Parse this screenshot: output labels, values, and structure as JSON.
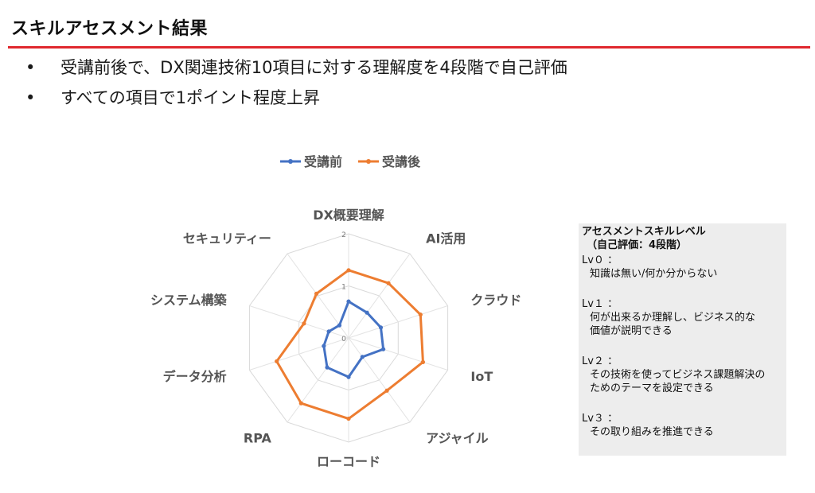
{
  "page": {
    "title": "スキルアセスメント結果",
    "bullets": [
      "受講前後で、DX関連技術10項目に対する理解度を4段階で自己評価",
      "すべての項目で1ポイント程度上昇"
    ]
  },
  "panel": {
    "heading": "アセスメントスキルレベル",
    "subheading": "（自己評価：4段階）",
    "levels": [
      {
        "label": "Lv０ ：",
        "lines": [
          "知識は無い/何か分からない"
        ]
      },
      {
        "label": "Lv１ ：",
        "lines": [
          "何が出来るか理解し、ビジネス的な",
          "価値が説明できる"
        ]
      },
      {
        "label": "Lv２ ：",
        "lines": [
          "その技術を使ってビジネス課題解決の",
          "ためのテーマを設定できる"
        ]
      },
      {
        "label": "Lv３ ：",
        "lines": [
          "その取り組みを推進できる"
        ]
      }
    ]
  },
  "chart_data": {
    "type": "radar",
    "categories": [
      "DX概要理解",
      "AI活用",
      "クラウド",
      "IoT",
      "アジャイル",
      "ローコード",
      "RPA",
      "データ分析",
      "システム構築",
      "セキュリティー"
    ],
    "series": [
      {
        "name": "受講前",
        "color": "#4472c4",
        "values": [
          0.7,
          0.6,
          0.65,
          0.7,
          0.45,
          0.75,
          0.7,
          0.5,
          0.4,
          0.3
        ]
      },
      {
        "name": "受講後",
        "color": "#ed7d31",
        "values": [
          1.3,
          1.3,
          1.45,
          1.5,
          1.25,
          1.55,
          1.55,
          1.45,
          0.9,
          1.05
        ]
      }
    ],
    "rlim": [
      0,
      2
    ],
    "ticks": [
      0,
      1,
      2
    ],
    "legend": "top",
    "grid": true
  }
}
